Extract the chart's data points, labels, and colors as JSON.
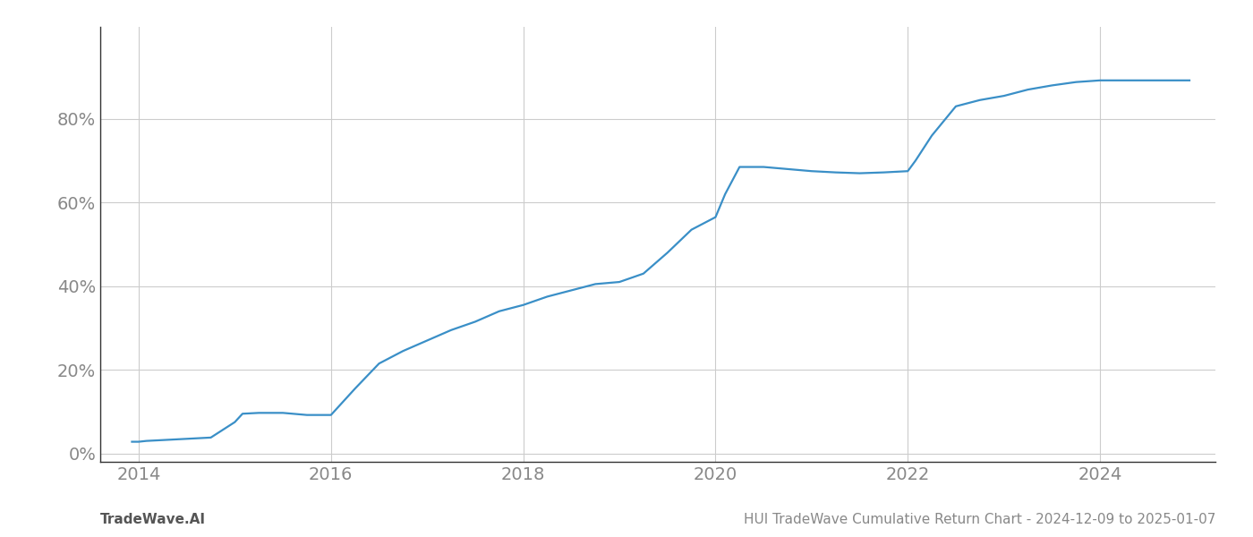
{
  "title": "HUI TradeWave Cumulative Return Chart - 2024-12-09 to 2025-01-07",
  "watermark": "TradeWave.AI",
  "line_color": "#3a8fc7",
  "background_color": "#ffffff",
  "grid_color": "#cccccc",
  "x_values": [
    2013.93,
    2014.0,
    2014.08,
    2014.25,
    2014.5,
    2014.75,
    2015.0,
    2015.08,
    2015.25,
    2015.5,
    2015.75,
    2016.0,
    2016.25,
    2016.5,
    2016.75,
    2017.0,
    2017.25,
    2017.5,
    2017.75,
    2018.0,
    2018.25,
    2018.5,
    2018.75,
    2019.0,
    2019.25,
    2019.5,
    2019.75,
    2020.0,
    2020.1,
    2020.25,
    2020.5,
    2020.75,
    2021.0,
    2021.25,
    2021.5,
    2021.75,
    2022.0,
    2022.08,
    2022.25,
    2022.5,
    2022.75,
    2023.0,
    2023.25,
    2023.5,
    2023.75,
    2024.0,
    2024.25,
    2024.5,
    2024.75,
    2024.93
  ],
  "y_values": [
    0.028,
    0.028,
    0.03,
    0.032,
    0.035,
    0.038,
    0.075,
    0.095,
    0.097,
    0.097,
    0.092,
    0.092,
    0.155,
    0.215,
    0.245,
    0.27,
    0.295,
    0.315,
    0.34,
    0.355,
    0.375,
    0.39,
    0.405,
    0.41,
    0.43,
    0.48,
    0.535,
    0.565,
    0.62,
    0.685,
    0.685,
    0.68,
    0.675,
    0.672,
    0.67,
    0.672,
    0.675,
    0.7,
    0.76,
    0.83,
    0.845,
    0.855,
    0.87,
    0.88,
    0.888,
    0.892,
    0.892,
    0.892,
    0.892,
    0.892
  ],
  "xlim": [
    2013.6,
    2025.2
  ],
  "ylim": [
    -0.02,
    1.02
  ],
  "xticks": [
    2014,
    2016,
    2018,
    2020,
    2022,
    2024
  ],
  "yticks": [
    0.0,
    0.2,
    0.4,
    0.6,
    0.8
  ],
  "ytick_labels": [
    "0%",
    "20%",
    "40%",
    "60%",
    "80%"
  ],
  "line_width": 1.6,
  "tick_fontsize": 14,
  "label_fontsize": 11,
  "tick_color": "#888888",
  "spine_color": "#333333"
}
